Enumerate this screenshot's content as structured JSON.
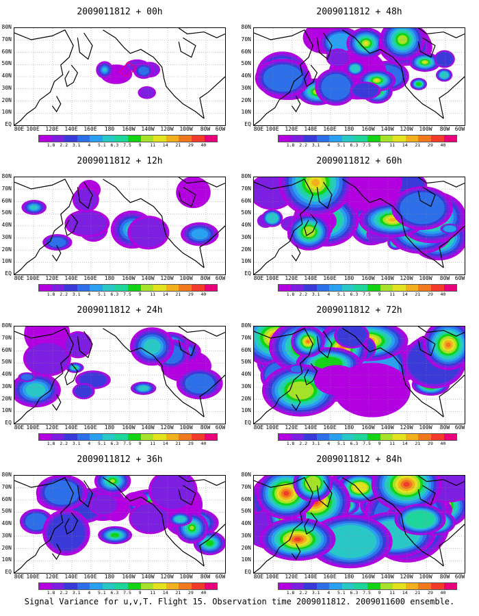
{
  "footer": "Signal Variance for u,v,T. Flight 15. Observation time 2009011812. 2009011600 ensemble.",
  "latitude_labels": [
    "80N",
    "70N",
    "60N",
    "50N",
    "40N",
    "30N",
    "20N",
    "10N",
    "EQ"
  ],
  "longitude_labels": [
    "80E",
    "100E",
    "120E",
    "140E",
    "160E",
    "180",
    "160W",
    "140W",
    "120W",
    "100W",
    "80W",
    "60W"
  ],
  "colorbar": {
    "labels": [
      "1.8",
      "2.2",
      "3.1",
      "4",
      "5.1",
      "6.3",
      "7.5",
      "9",
      "11",
      "14",
      "21",
      "29",
      "40"
    ],
    "colors": [
      "#b300e0",
      "#7c1fe0",
      "#3a3ad8",
      "#2c6fe8",
      "#2aa0f0",
      "#2ac7c7",
      "#1ed69a",
      "#12d414",
      "#a6e22a",
      "#e2e21e",
      "#f2b01e",
      "#f2781e",
      "#f23a2a",
      "#e8007a"
    ]
  },
  "panels": [
    {
      "title": "2009011812 + 00h",
      "intensity": 0
    },
    {
      "title": "2009011812 + 48h",
      "intensity": 4
    },
    {
      "title": "2009011812 + 12h",
      "intensity": 1
    },
    {
      "title": "2009011812 + 60h",
      "intensity": 5
    },
    {
      "title": "2009011812 + 24h",
      "intensity": 2
    },
    {
      "title": "2009011812 + 72h",
      "intensity": 6
    },
    {
      "title": "2009011812 + 36h",
      "intensity": 3
    },
    {
      "title": "2009011812 + 84h",
      "intensity": 7
    }
  ]
}
